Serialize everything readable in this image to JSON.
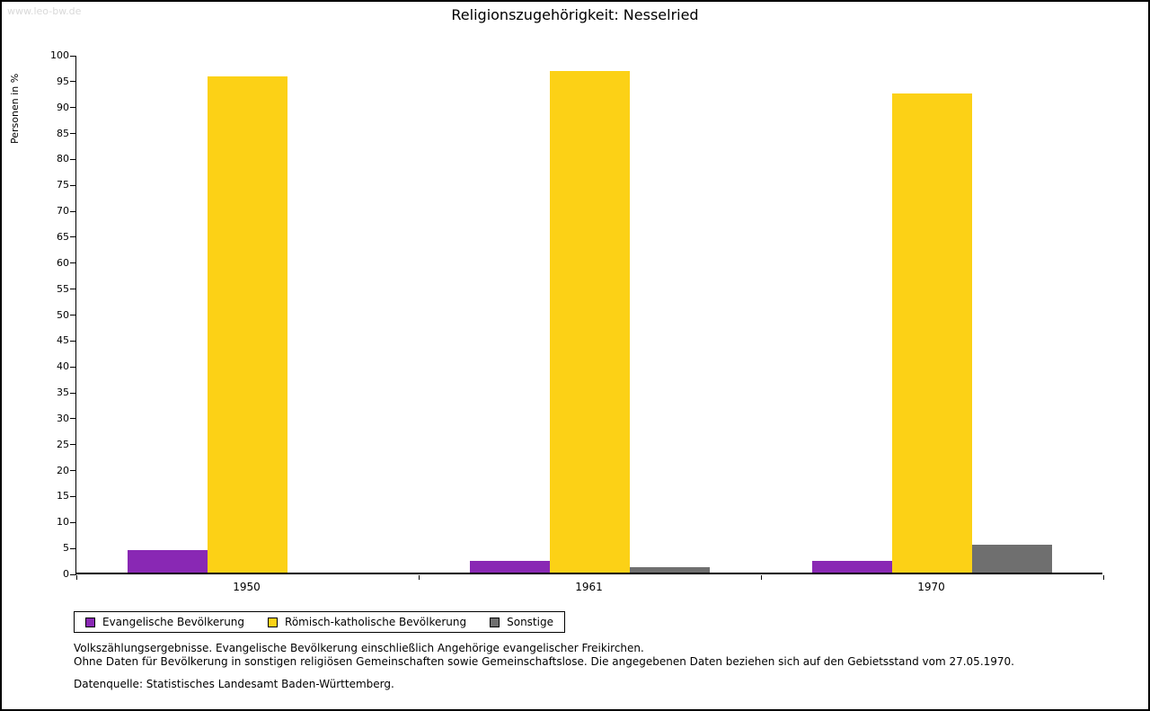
{
  "watermark": "www.leo-bw.de",
  "chart_data": {
    "type": "bar",
    "title": "Religionszugehörigkeit: Nesselried",
    "ylabel": "Personen in %",
    "xlabel": "",
    "ylim": [
      0,
      100
    ],
    "ytick_step": 5,
    "grid": false,
    "legend_position": "bottom",
    "categories": [
      "1950",
      "1961",
      "1970"
    ],
    "series": [
      {
        "name": "Evangelische Bevölkerung",
        "color": "#8928b4",
        "values": [
          4.3,
          2.3,
          2.3
        ]
      },
      {
        "name": "Römisch-katholische Bevölkerung",
        "color": "#fcd116",
        "values": [
          95.7,
          96.7,
          92.3
        ]
      },
      {
        "name": "Sonstige",
        "color": "#6f6f6f",
        "values": [
          0,
          1.0,
          5.4
        ]
      }
    ]
  },
  "footnotes": {
    "line1": "Volkszählungsergebnisse. Evangelische Bevölkerung einschließlich Angehörige evangelischer Freikirchen.",
    "line2": "Ohne Daten für Bevölkerung in sonstigen religiösen Gemeinschaften sowie Gemeinschaftslose. Die angegebenen Daten beziehen sich auf den Gebietsstand vom 27.05.1970.",
    "source": "Datenquelle: Statistisches Landesamt Baden-Württemberg."
  }
}
